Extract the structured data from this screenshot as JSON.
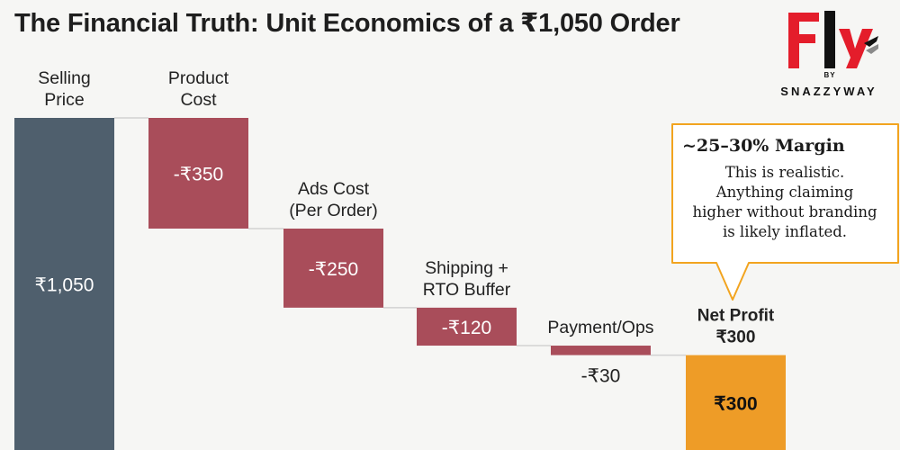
{
  "title": "The Financial Truth: Unit Economics of a ₹1,050 Order",
  "brand": {
    "logo_text": "Fly",
    "by": "BY",
    "name": "SNAZZYWAY",
    "colors": {
      "primary": "#e41d2b",
      "dark": "#111111"
    }
  },
  "callout": {
    "heading": "~25–30% Margin",
    "lines": [
      "This is realistic.",
      "Anything claiming",
      "higher without branding",
      "is likely inflated."
    ]
  },
  "chart_data": {
    "type": "bar",
    "subtype": "waterfall",
    "title": "The Financial Truth: Unit Economics of a ₹1,050 Order",
    "currency": "₹",
    "steps": [
      {
        "label": [
          "Selling",
          "Price"
        ],
        "value": 1050,
        "kind": "total",
        "value_label": "₹1,050"
      },
      {
        "label": [
          "Product",
          "Cost"
        ],
        "value": -350,
        "kind": "delta",
        "value_label": "-₹350"
      },
      {
        "label": [
          "Ads Cost",
          "(Per Order)"
        ],
        "value": -250,
        "kind": "delta",
        "value_label": "-₹250"
      },
      {
        "label": [
          "Shipping +",
          "RTO Buffer"
        ],
        "value": -120,
        "kind": "delta",
        "value_label": "-₹120"
      },
      {
        "label": [
          "Payment/Ops"
        ],
        "value": -30,
        "kind": "delta",
        "value_label": "-₹30"
      },
      {
        "label": [
          "Net Profit",
          "₹300"
        ],
        "value": 300,
        "kind": "total",
        "value_label": "₹300"
      }
    ],
    "ylim": [
      0,
      1050
    ],
    "colors": {
      "total": "#4f5f6d",
      "cost": "#a94d5a",
      "profit": "#ee9c27",
      "connector": "#d2d2d2"
    }
  }
}
